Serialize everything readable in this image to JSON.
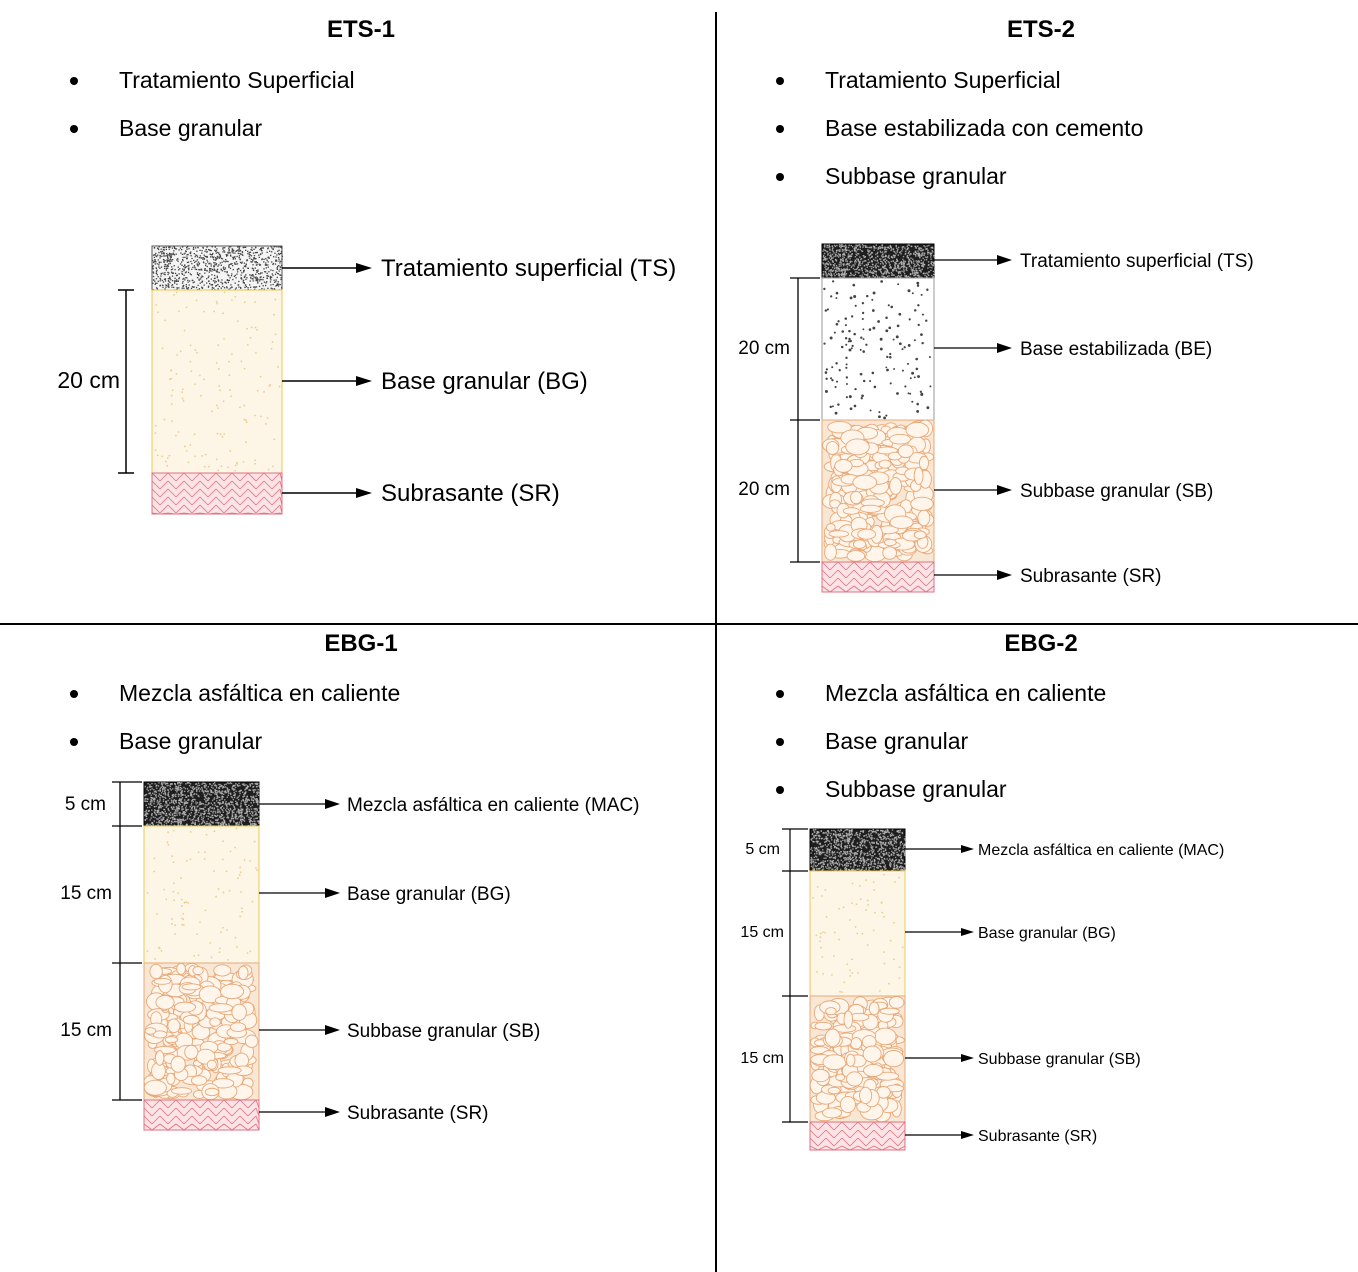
{
  "colors": {
    "surface_treatment": "#1e1e1e",
    "granular_base": "#fdf6e6",
    "stabilized_base": "#ffffff",
    "subbase": "#f8e7d4",
    "subgrade": "#fbe3e6",
    "base_outline": "#f0c850",
    "subbase_stroke": "#e8a878",
    "subgrade_stroke": "#e07080"
  },
  "panels": [
    {
      "title": "ETS-1",
      "bullets": [
        "Tratamiento Superficial",
        "Base granular"
      ],
      "layers": [
        {
          "key": "ts_light",
          "label": "Tratamiento superficial (TS)",
          "thickness": ""
        },
        {
          "key": "bg",
          "label": "Base granular (BG)",
          "thickness": "20 cm"
        },
        {
          "key": "sr",
          "label": "Subrasante (SR)",
          "thickness": ""
        }
      ]
    },
    {
      "title": "ETS-2",
      "bullets": [
        "Tratamiento Superficial",
        "Base estabilizada con cemento",
        "Subbase granular"
      ],
      "layers": [
        {
          "key": "ts",
          "label": "Tratamiento superficial (TS)",
          "thickness": ""
        },
        {
          "key": "be",
          "label": "Base estabilizada (BE)",
          "thickness": "20 cm"
        },
        {
          "key": "sb",
          "label": "Subbase granular (SB)",
          "thickness": "20 cm"
        },
        {
          "key": "sr",
          "label": "Subrasante (SR)",
          "thickness": ""
        }
      ]
    },
    {
      "title": "EBG-1",
      "bullets": [
        "Mezcla asfáltica en caliente",
        "Base granular"
      ],
      "layers": [
        {
          "key": "mac",
          "label": "Mezcla asfáltica en caliente (MAC)",
          "thickness": "5 cm"
        },
        {
          "key": "bg",
          "label": "Base granular (BG)",
          "thickness": "15 cm"
        },
        {
          "key": "sb",
          "label": "Subbase granular (SB)",
          "thickness": "15 cm"
        },
        {
          "key": "sr",
          "label": "Subrasante (SR)",
          "thickness": ""
        }
      ]
    },
    {
      "title": "EBG-2",
      "bullets": [
        "Mezcla asfáltica en caliente",
        "Base granular",
        "Subbase granular"
      ],
      "layers": [
        {
          "key": "mac",
          "label": "Mezcla asfáltica en caliente (MAC)",
          "thickness": "5 cm"
        },
        {
          "key": "bg",
          "label": "Base granular (BG)",
          "thickness": "15 cm"
        },
        {
          "key": "sb",
          "label": "Subbase granular (SB)",
          "thickness": "15 cm"
        },
        {
          "key": "sr",
          "label": "Subrasante (SR)",
          "thickness": ""
        }
      ]
    }
  ]
}
